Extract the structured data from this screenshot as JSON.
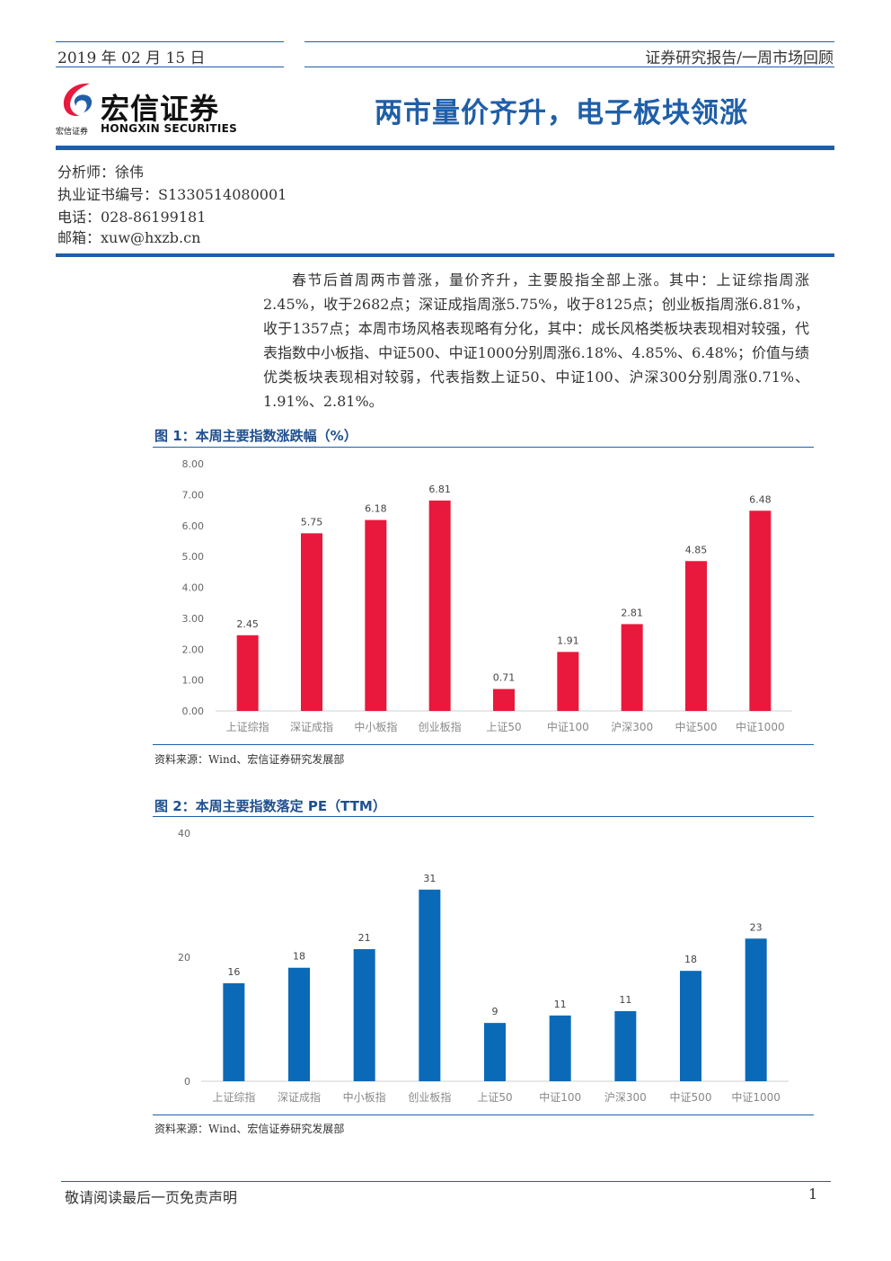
{
  "header": {
    "date": "2019 年 02 月 15 日",
    "report_type": "证券研究报告/一周市场回顾",
    "logo_cn": "宏信证券",
    "logo_en": "HONGXIN SECURITIES",
    "logo_small": "宏信证券",
    "title": "两市量价齐升，电子板块领涨"
  },
  "analyst": {
    "name_line": "分析师：徐伟",
    "cert_line": "执业证书编号：S1330514080001",
    "phone_line": "电话：028-86199181",
    "email_line": "邮箱：xuw@hxzb.cn"
  },
  "summary": "春节后首周两市普涨，量价齐升，主要股指全部上涨。其中：上证综指周涨2.45%，收于2682点；深证成指周涨5.75%，收于8125点；创业板指周涨6.81%，收于1357点；本周市场风格表现略有分化，其中：成长风格类板块表现相对较强，代表指数中小板指、中证500、中证1000分别周涨6.18%、4.85%、6.48%；价值与绩优类板块表现相对较弱，代表指数上证50、中证100、沪深300分别周涨0.71%、1.91%、2.81%。",
  "figures": [
    {
      "title": "图 1：本周主要指数涨跌幅（%）",
      "source": "资料来源：Wind、宏信证券研究发展部"
    },
    {
      "title": "图 2：本周主要指数落定 PE（TTM）",
      "source": "资料来源：Wind、宏信证券研究发展部"
    }
  ],
  "footer": {
    "disclaimer": "敬请阅读最后一页免责声明",
    "page": "1"
  },
  "colors": {
    "brand_blue": "#1f5fa8",
    "bar_red": "#e8193c",
    "bar_blue": "#0a6ab8"
  },
  "chart_data": [
    {
      "type": "bar",
      "categories": [
        "上证综指",
        "深证成指",
        "中小板指",
        "创业板指",
        "上证50",
        "中证100",
        "沪深300",
        "中证500",
        "中证1000"
      ],
      "values": [
        2.45,
        5.75,
        6.18,
        6.81,
        0.71,
        1.91,
        2.81,
        4.85,
        6.48
      ],
      "value_labels": [
        "2.45",
        "5.75",
        "6.18",
        "6.81",
        "0.71",
        "1.91",
        "2.81",
        "4.85",
        "6.48"
      ],
      "yticks": [
        "0.00",
        "1.00",
        "2.00",
        "3.00",
        "4.00",
        "5.00",
        "6.00",
        "7.00",
        "8.00"
      ],
      "ylim": [
        0,
        8
      ],
      "grid": false,
      "color": "#e8193c"
    },
    {
      "type": "bar",
      "categories": [
        "上证综指",
        "深证成指",
        "中小板指",
        "创业板指",
        "上证50",
        "中证100",
        "沪深300",
        "中证500",
        "中证1000"
      ],
      "values": [
        15.8,
        18.3,
        21.3,
        30.9,
        9.4,
        10.6,
        11.3,
        17.8,
        23.0
      ],
      "value_labels": [
        "16",
        "18",
        "21",
        "31",
        "9",
        "11",
        "11",
        "18",
        "23"
      ],
      "yticks": [
        "0",
        "20",
        "40"
      ],
      "ylim": [
        0,
        40
      ],
      "grid": false,
      "color": "#0a6ab8"
    }
  ]
}
